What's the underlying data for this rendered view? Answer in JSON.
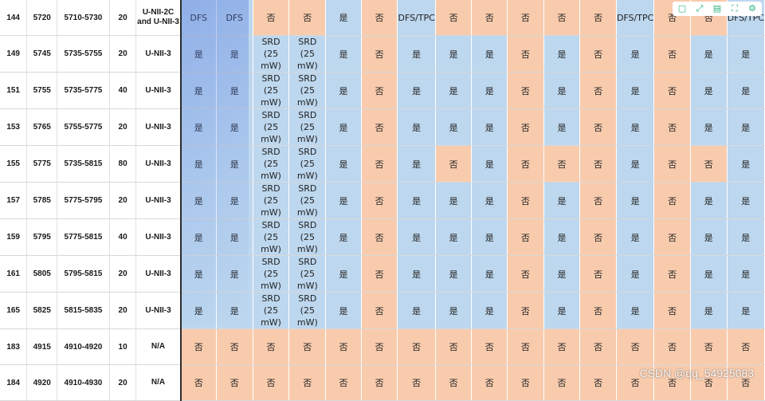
{
  "columns": 21,
  "rows": [
    {
      "ch": "144",
      "freq": "5720",
      "range": "5710-5730",
      "bw": "20",
      "band": "U-NII-2C and U-NII-3",
      "cells": [
        [
          "DFS",
          "blue"
        ],
        [
          "DFS",
          "blue"
        ],
        [
          "否",
          "orange"
        ],
        [
          "否",
          "orange"
        ],
        [
          "是",
          "blue"
        ],
        [
          "否",
          "orange"
        ],
        [
          "DFS/TPC",
          "blue"
        ],
        [
          "否",
          "orange"
        ],
        [
          "否",
          "orange"
        ],
        [
          "否",
          "orange"
        ],
        [
          "否",
          "orange"
        ],
        [
          "否",
          "orange"
        ],
        [
          "DFS/TPC",
          "blue"
        ],
        [
          "否",
          "orange"
        ],
        [
          "否",
          "orange"
        ],
        [
          "DFS/TPC",
          "blue"
        ]
      ]
    },
    {
      "ch": "149",
      "freq": "5745",
      "range": "5735-5755",
      "bw": "20",
      "band": "U-NII-3",
      "cells": [
        [
          "是",
          "blue"
        ],
        [
          "是",
          "blue"
        ],
        [
          "SRD (25 mW)",
          "blue"
        ],
        [
          "SRD (25 mW)",
          "blue"
        ],
        [
          "是",
          "blue"
        ],
        [
          "否",
          "orange"
        ],
        [
          "是",
          "blue"
        ],
        [
          "是",
          "blue"
        ],
        [
          "是",
          "blue"
        ],
        [
          "否",
          "orange"
        ],
        [
          "是",
          "blue"
        ],
        [
          "否",
          "orange"
        ],
        [
          "是",
          "blue"
        ],
        [
          "否",
          "orange"
        ],
        [
          "是",
          "blue"
        ],
        [
          "是",
          "blue"
        ]
      ]
    },
    {
      "ch": "151",
      "freq": "5755",
      "range": "5735-5775",
      "bw": "40",
      "band": "U-NII-3",
      "cells": [
        [
          "是",
          "blue"
        ],
        [
          "是",
          "blue"
        ],
        [
          "SRD (25 mW)",
          "blue"
        ],
        [
          "SRD (25 mW)",
          "blue"
        ],
        [
          "是",
          "blue"
        ],
        [
          "否",
          "orange"
        ],
        [
          "是",
          "blue"
        ],
        [
          "是",
          "blue"
        ],
        [
          "是",
          "blue"
        ],
        [
          "否",
          "orange"
        ],
        [
          "是",
          "blue"
        ],
        [
          "否",
          "orange"
        ],
        [
          "是",
          "blue"
        ],
        [
          "否",
          "orange"
        ],
        [
          "是",
          "blue"
        ],
        [
          "是",
          "blue"
        ]
      ]
    },
    {
      "ch": "153",
      "freq": "5765",
      "range": "5755-5775",
      "bw": "20",
      "band": "U-NII-3",
      "cells": [
        [
          "是",
          "blue"
        ],
        [
          "是",
          "blue"
        ],
        [
          "SRD (25 mW)",
          "blue"
        ],
        [
          "SRD (25 mW)",
          "blue"
        ],
        [
          "是",
          "blue"
        ],
        [
          "否",
          "orange"
        ],
        [
          "是",
          "blue"
        ],
        [
          "是",
          "blue"
        ],
        [
          "是",
          "blue"
        ],
        [
          "否",
          "orange"
        ],
        [
          "是",
          "blue"
        ],
        [
          "否",
          "orange"
        ],
        [
          "是",
          "blue"
        ],
        [
          "否",
          "orange"
        ],
        [
          "是",
          "blue"
        ],
        [
          "是",
          "blue"
        ]
      ]
    },
    {
      "ch": "155",
      "freq": "5775",
      "range": "5735-5815",
      "bw": "80",
      "band": "U-NII-3",
      "cells": [
        [
          "是",
          "blue"
        ],
        [
          "是",
          "blue"
        ],
        [
          "SRD (25 mW)",
          "blue"
        ],
        [
          "SRD (25 mW)",
          "blue"
        ],
        [
          "是",
          "blue"
        ],
        [
          "否",
          "orange"
        ],
        [
          "是",
          "blue"
        ],
        [
          "否",
          "orange"
        ],
        [
          "是",
          "blue"
        ],
        [
          "否",
          "orange"
        ],
        [
          "否",
          "orange"
        ],
        [
          "否",
          "orange"
        ],
        [
          "是",
          "blue"
        ],
        [
          "否",
          "orange"
        ],
        [
          "否",
          "orange"
        ],
        [
          "是",
          "blue"
        ]
      ]
    },
    {
      "ch": "157",
      "freq": "5785",
      "range": "5775-5795",
      "bw": "20",
      "band": "U-NII-3",
      "cells": [
        [
          "是",
          "blue"
        ],
        [
          "是",
          "blue"
        ],
        [
          "SRD (25 mW)",
          "blue"
        ],
        [
          "SRD (25 mW)",
          "blue"
        ],
        [
          "是",
          "blue"
        ],
        [
          "否",
          "orange"
        ],
        [
          "是",
          "blue"
        ],
        [
          "是",
          "blue"
        ],
        [
          "是",
          "blue"
        ],
        [
          "否",
          "orange"
        ],
        [
          "是",
          "blue"
        ],
        [
          "否",
          "orange"
        ],
        [
          "是",
          "blue"
        ],
        [
          "否",
          "orange"
        ],
        [
          "是",
          "blue"
        ],
        [
          "是",
          "blue"
        ]
      ]
    },
    {
      "ch": "159",
      "freq": "5795",
      "range": "5775-5815",
      "bw": "40",
      "band": "U-NII-3",
      "cells": [
        [
          "是",
          "blue"
        ],
        [
          "是",
          "blue"
        ],
        [
          "SRD (25 mW)",
          "blue"
        ],
        [
          "SRD (25 mW)",
          "blue"
        ],
        [
          "是",
          "blue"
        ],
        [
          "否",
          "orange"
        ],
        [
          "是",
          "blue"
        ],
        [
          "是",
          "blue"
        ],
        [
          "是",
          "blue"
        ],
        [
          "否",
          "orange"
        ],
        [
          "是",
          "blue"
        ],
        [
          "否",
          "orange"
        ],
        [
          "是",
          "blue"
        ],
        [
          "否",
          "orange"
        ],
        [
          "是",
          "blue"
        ],
        [
          "是",
          "blue"
        ]
      ]
    },
    {
      "ch": "161",
      "freq": "5805",
      "range": "5795-5815",
      "bw": "20",
      "band": "U-NII-3",
      "cells": [
        [
          "是",
          "blue"
        ],
        [
          "是",
          "blue"
        ],
        [
          "SRD (25 mW)",
          "blue"
        ],
        [
          "SRD (25 mW)",
          "blue"
        ],
        [
          "是",
          "blue"
        ],
        [
          "否",
          "orange"
        ],
        [
          "是",
          "blue"
        ],
        [
          "是",
          "blue"
        ],
        [
          "是",
          "blue"
        ],
        [
          "否",
          "orange"
        ],
        [
          "是",
          "blue"
        ],
        [
          "否",
          "orange"
        ],
        [
          "是",
          "blue"
        ],
        [
          "否",
          "orange"
        ],
        [
          "是",
          "blue"
        ],
        [
          "是",
          "blue"
        ]
      ]
    },
    {
      "ch": "165",
      "freq": "5825",
      "range": "5815-5835",
      "bw": "20",
      "band": "U-NII-3",
      "cells": [
        [
          "是",
          "blue"
        ],
        [
          "是",
          "blue"
        ],
        [
          "SRD (25 mW)",
          "blue"
        ],
        [
          "SRD (25 mW)",
          "blue"
        ],
        [
          "是",
          "blue"
        ],
        [
          "否",
          "orange"
        ],
        [
          "是",
          "blue"
        ],
        [
          "是",
          "blue"
        ],
        [
          "是",
          "blue"
        ],
        [
          "否",
          "orange"
        ],
        [
          "是",
          "blue"
        ],
        [
          "否",
          "orange"
        ],
        [
          "是",
          "blue"
        ],
        [
          "否",
          "orange"
        ],
        [
          "是",
          "blue"
        ],
        [
          "是",
          "blue"
        ]
      ]
    },
    {
      "ch": "183",
      "freq": "4915",
      "range": "4910-4920",
      "bw": "10",
      "band": "N/A",
      "cells": [
        [
          "否",
          "orange"
        ],
        [
          "否",
          "orange"
        ],
        [
          "否",
          "orange"
        ],
        [
          "否",
          "orange"
        ],
        [
          "否",
          "orange"
        ],
        [
          "否",
          "orange"
        ],
        [
          "否",
          "orange"
        ],
        [
          "否",
          "orange"
        ],
        [
          "否",
          "orange"
        ],
        [
          "否",
          "orange"
        ],
        [
          "否",
          "orange"
        ],
        [
          "否",
          "orange"
        ],
        [
          "否",
          "orange"
        ],
        [
          "否",
          "orange"
        ],
        [
          "否",
          "orange"
        ],
        [
          "否",
          "orange"
        ]
      ]
    },
    {
      "ch": "184",
      "freq": "4920",
      "range": "4910-4930",
      "bw": "20",
      "band": "N/A",
      "cells": [
        [
          "否",
          "orange"
        ],
        [
          "否",
          "orange"
        ],
        [
          "否",
          "orange"
        ],
        [
          "否",
          "orange"
        ],
        [
          "否",
          "orange"
        ],
        [
          "否",
          "orange"
        ],
        [
          "否",
          "orange"
        ],
        [
          "否",
          "orange"
        ],
        [
          "否",
          "orange"
        ],
        [
          "否",
          "orange"
        ],
        [
          "否",
          "orange"
        ],
        [
          "否",
          "orange"
        ],
        [
          "否",
          "orange"
        ],
        [
          "否",
          "orange"
        ],
        [
          "否",
          "orange"
        ],
        [
          "否",
          "orange"
        ]
      ]
    }
  ],
  "colors": {
    "blue": "#bdd7ee",
    "orange": "#f8cbad"
  },
  "toolbar": {
    "icons": [
      "table-icon",
      "expand-icon",
      "save-icon",
      "crop-icon",
      "settings-icon"
    ],
    "glyphs": [
      "▢",
      "⤢",
      "▤",
      "⛶",
      "⚙"
    ]
  },
  "watermark": "CSDN @qq_54925083"
}
